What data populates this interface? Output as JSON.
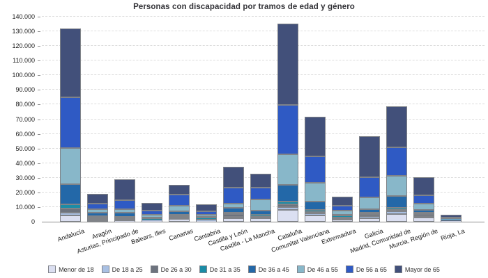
{
  "chart_data": {
    "type": "bar",
    "stacked": true,
    "title": "Personas con discapacidad por tramos de edad y género",
    "grid": "dashed-horizontal",
    "legend_position": "bottom",
    "y_axis": {
      "min": 0,
      "max": 140000,
      "step": 10000,
      "tick_labels_top_to_bottom": [
        "140.000",
        "130.000",
        "120.000",
        "110.000",
        "100.000",
        "90.000",
        "80.000",
        "70.000",
        "60.000",
        "50.000",
        "40.000",
        "30.000",
        "20.000",
        "10.000",
        "0"
      ]
    },
    "categories": [
      "Andalucía",
      "Aragón",
      "Asturias, Principado de",
      "Balears, Illes",
      "Canarias",
      "Cantabria",
      "Castilla y León",
      "Castilla - La Mancha",
      "Cataluña",
      "Comunitat Valenciana",
      "Extremadura",
      "Galicia",
      "Madrid, Comunidad de",
      "Murcia, Región de",
      "Rioja, La"
    ],
    "series": [
      {
        "name": "Menor de 18",
        "color": "#dbdff1",
        "values": [
          4300,
          600,
          400,
          500,
          1900,
          400,
          2400,
          2200,
          8100,
          4400,
          1400,
          2500,
          5400,
          3000,
          500
        ]
      },
      {
        "name": "De 18 a 25",
        "color": "#a9c0e3",
        "values": [
          1900,
          700,
          600,
          400,
          700,
          400,
          1000,
          1000,
          1700,
          1400,
          600,
          1300,
          1700,
          1000,
          200
        ]
      },
      {
        "name": "De 26 a 30",
        "color": "#6d737e",
        "values": [
          2600,
          900,
          800,
          500,
          900,
          800,
          1600,
          1100,
          2100,
          1000,
          800,
          1300,
          1000,
          1100,
          300
        ]
      },
      {
        "name": "De 31 a 35",
        "color": "#1b8ca6",
        "values": [
          2900,
          800,
          700,
          400,
          800,
          500,
          600,
          500,
          1900,
          1400,
          400,
          800,
          1400,
          600,
          200
        ]
      },
      {
        "name": "De 36 a 45",
        "color": "#2368a8",
        "values": [
          14000,
          2300,
          2700,
          1000,
          2300,
          1000,
          3600,
          2800,
          11400,
          5600,
          1300,
          2600,
          8200,
          1800,
          400
        ]
      },
      {
        "name": "De 46 a 55",
        "color": "#88b7c9",
        "values": [
          24500,
          2500,
          2500,
          2200,
          3700,
          1500,
          2900,
          7500,
          21000,
          12600,
          2600,
          8100,
          13800,
          4400,
          500
        ]
      },
      {
        "name": "De 56 a 65",
        "color": "#2f5ac4",
        "values": [
          34800,
          3600,
          6500,
          2800,
          7900,
          2500,
          10900,
          8200,
          33700,
          18100,
          3500,
          13800,
          19500,
          5800,
          700
        ]
      },
      {
        "name": "Mayor de 65",
        "color": "#42507a",
        "values": [
          47000,
          6900,
          13800,
          5200,
          6700,
          4800,
          14200,
          9500,
          55500,
          27000,
          5900,
          28000,
          28000,
          12300,
          1900
        ]
      }
    ],
    "totals": [
      132000,
      18300,
      28000,
      13000,
      24900,
      11900,
      37200,
      32800,
      135400,
      71500,
      16500,
      58400,
      79000,
      30000,
      4700
    ]
  }
}
